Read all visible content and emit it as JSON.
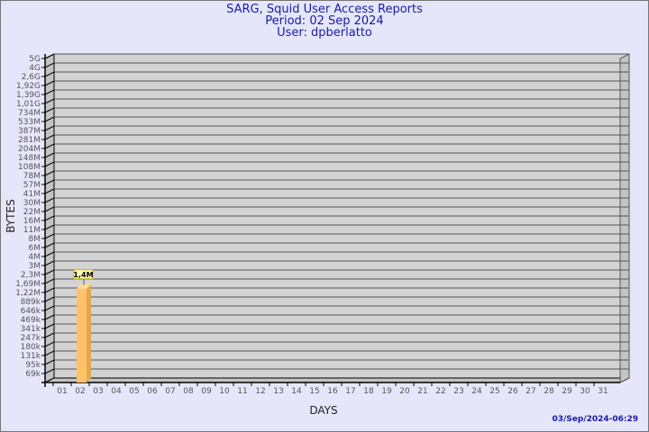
{
  "header": {
    "title": "SARG, Squid User Access Reports",
    "period": "Period: 02 Sep 2024",
    "user": "User: dpberlatto"
  },
  "footer": {
    "timestamp": "03/Sep/2024-06:29"
  },
  "chart_data": {
    "type": "bar",
    "xlabel": "DAYS",
    "ylabel": "BYTES",
    "y_scale": "log",
    "grid": true,
    "y_tick_labels": [
      "5G",
      "4G",
      "2,6G",
      "1,92G",
      "1,39G",
      "1,01G",
      "734M",
      "533M",
      "387M",
      "281M",
      "204M",
      "148M",
      "108M",
      "78M",
      "57M",
      "41M",
      "30M",
      "22M",
      "16M",
      "11M",
      "8M",
      "6M",
      "4M",
      "3M",
      "2,3M",
      "1,69M",
      "1,22M",
      "889k",
      "646k",
      "469k",
      "341k",
      "247k",
      "180k",
      "131k",
      "95k",
      "69k"
    ],
    "categories": [
      "01",
      "02",
      "03",
      "04",
      "05",
      "06",
      "07",
      "08",
      "09",
      "10",
      "11",
      "12",
      "13",
      "14",
      "15",
      "16",
      "17",
      "18",
      "19",
      "20",
      "21",
      "22",
      "23",
      "24",
      "25",
      "26",
      "27",
      "28",
      "29",
      "30",
      "31"
    ],
    "series": [
      {
        "points": [
          {
            "x": "02",
            "value": 1400000,
            "label": "1,4M"
          }
        ]
      }
    ],
    "colors": {
      "bar": "#ffc266",
      "bar_side": "#e0a850",
      "bar_top": "#ffdd99",
      "wall": "#d3d3d3",
      "label_bg": "#ffffc0"
    }
  }
}
